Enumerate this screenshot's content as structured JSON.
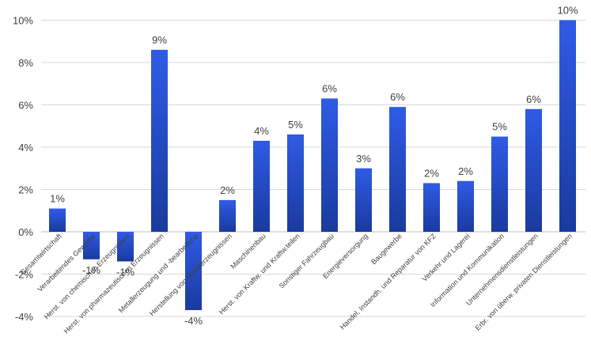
{
  "chart_data": {
    "type": "bar",
    "title": "",
    "xlabel": "",
    "ylabel": "",
    "ylim": [
      -0.045,
      0.105
    ],
    "yticks": [
      -0.04,
      -0.02,
      0,
      0.02,
      0.04,
      0.06,
      0.08,
      0.1
    ],
    "ytick_labels": [
      "-4%",
      "-2%",
      "0%",
      "2%",
      "4%",
      "6%",
      "8%",
      "10%"
    ],
    "grid": true,
    "legend": "none",
    "colors": {
      "bar_top": "#2f5be6",
      "bar_bottom": "#1a3a9e"
    },
    "categories": [
      "Gesamtwirtschaft",
      "Verarbeitendes Gewerbe",
      "Herst. von chemischen Erzeugnissen",
      "Herst. von pharmazeutischen Erzeugnissen",
      "Metallerzeugung und -bearbeitung",
      "Herstellung von Metallerzeugnissen",
      "Maschinenbau",
      "Herst. von Kraftw. und Kraftw.teilen",
      "Sonstiger Fahrzeugbau",
      "Energieversorgung",
      "Baugewerbe",
      "Handel, Instandh. und Reparatur von KFZ",
      "Verkehr und Lagerei",
      "Information und Kommunikation",
      "Unternehmensdienstleistungen",
      "Erbr. von überw. privaten Dienstleistungen"
    ],
    "values": [
      0.011,
      -0.013,
      -0.014,
      0.086,
      -0.037,
      0.015,
      0.043,
      0.046,
      0.063,
      0.03,
      0.059,
      0.023,
      0.024,
      0.045,
      0.058,
      0.1
    ],
    "data_labels": [
      "1%",
      "-1%",
      "-1%",
      "9%",
      "-4%",
      "2%",
      "4%",
      "5%",
      "6%",
      "3%",
      "6%",
      "2%",
      "2%",
      "5%",
      "6%",
      "10%"
    ]
  }
}
